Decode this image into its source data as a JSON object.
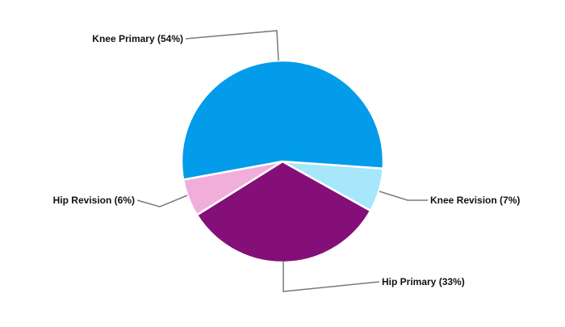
{
  "chart_data": {
    "type": "pie",
    "title": "",
    "slices": [
      {
        "label": "Knee Revision",
        "value": 7,
        "display": "Knee Revision (7%)",
        "color": "#A6E7FC"
      },
      {
        "label": "Hip Primary",
        "value": 33,
        "display": "Hip Primary (33%)",
        "color": "#840F78"
      },
      {
        "label": "Hip Revision",
        "value": 6,
        "display": "Hip Revision (6%)",
        "color": "#F1AEDA"
      },
      {
        "label": "Knee Primary",
        "value": 54,
        "display": "Knee Primary (54%)",
        "color": "#039CEA"
      }
    ],
    "legend": "none",
    "labels": "outside with leader lines"
  }
}
